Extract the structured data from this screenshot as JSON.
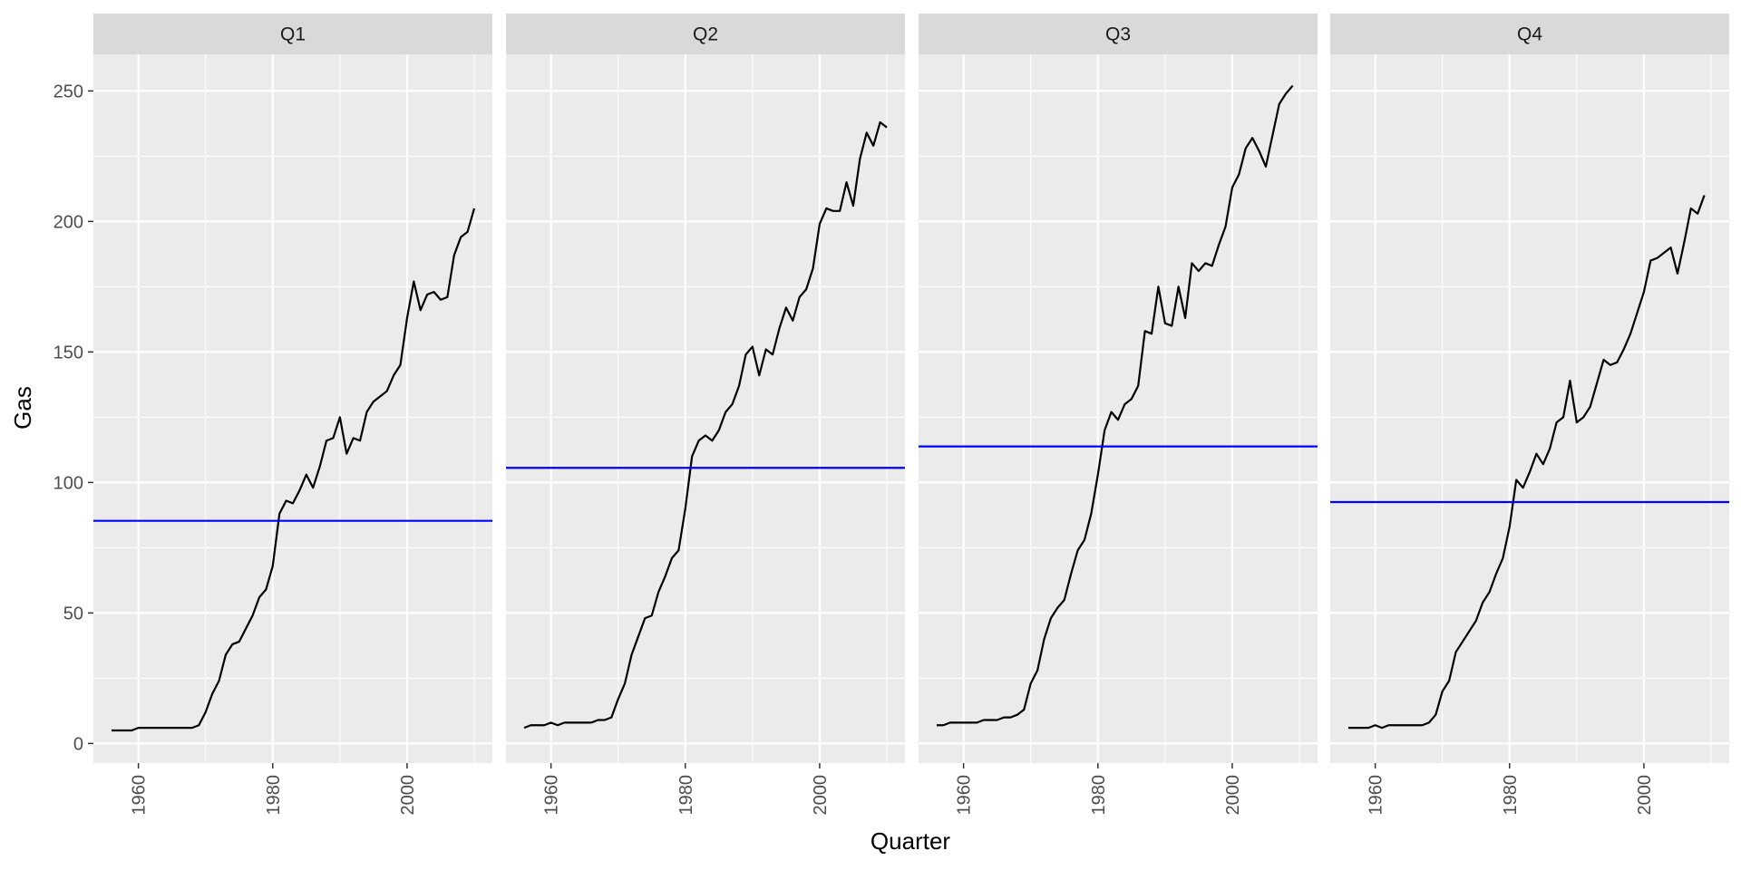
{
  "chart_data": {
    "type": "line",
    "title": "",
    "xlabel": "Quarter",
    "ylabel": "Gas",
    "xlim": [
      1953.3,
      2012.7
    ],
    "ylim": [
      -7.5,
      264
    ],
    "x_ticks": [
      1960,
      1980,
      2000
    ],
    "x_tick_labels": [
      "1960",
      "1980",
      "2000"
    ],
    "y_ticks": [
      0,
      50,
      100,
      150,
      200,
      250
    ],
    "y_tick_labels": [
      "0",
      "50",
      "100",
      "150",
      "200",
      "250"
    ],
    "grid": true,
    "line_color": "#000000",
    "mean_line_color": "#0000ff",
    "panel_background": "#ebebeb",
    "strip_background": "#d9d9d9",
    "x": [
      1956,
      1957,
      1958,
      1959,
      1960,
      1961,
      1962,
      1963,
      1964,
      1965,
      1966,
      1967,
      1968,
      1969,
      1970,
      1971,
      1972,
      1973,
      1974,
      1975,
      1976,
      1977,
      1978,
      1979,
      1980,
      1981,
      1982,
      1983,
      1984,
      1985,
      1986,
      1987,
      1988,
      1989,
      1990,
      1991,
      1992,
      1993,
      1994,
      1995,
      1996,
      1997,
      1998,
      1999,
      2000,
      2001,
      2002,
      2003,
      2004,
      2005,
      2006,
      2007,
      2008,
      2009,
      2010
    ],
    "facets": [
      {
        "label": "Q1",
        "mean": 85.3,
        "values": [
          5,
          5,
          5,
          5,
          6,
          6,
          6,
          6,
          6,
          6,
          6,
          6,
          6,
          7,
          12,
          19,
          24,
          34,
          38,
          39,
          44,
          49,
          56,
          59,
          68,
          88,
          93,
          92,
          97,
          103,
          98,
          106,
          116,
          117,
          125,
          111,
          117,
          116,
          127,
          131,
          133,
          135,
          141,
          145,
          163,
          177,
          166,
          172,
          173,
          170,
          171,
          187,
          194,
          196,
          205
        ]
      },
      {
        "label": "Q2",
        "mean": 105.6,
        "values": [
          6,
          7,
          7,
          7,
          8,
          7,
          8,
          8,
          8,
          8,
          8,
          9,
          9,
          10,
          17,
          23,
          34,
          41,
          48,
          49,
          58,
          64,
          71,
          74,
          90,
          110,
          116,
          118,
          116,
          120,
          127,
          130,
          137,
          149,
          152,
          141,
          151,
          149,
          159,
          167,
          162,
          171,
          174,
          182,
          199,
          205,
          204,
          204,
          215,
          206,
          224,
          234,
          229,
          238,
          236
        ]
      },
      {
        "label": "Q3",
        "mean": 113.8,
        "values": [
          7,
          7,
          8,
          8,
          8,
          8,
          8,
          9,
          9,
          9,
          10,
          10,
          11,
          13,
          23,
          28,
          40,
          48,
          52,
          55,
          65,
          74,
          78,
          88,
          103,
          120,
          127,
          124,
          130,
          132,
          137,
          158,
          157,
          175,
          161,
          160,
          175,
          163,
          184,
          181,
          184,
          183,
          191,
          198,
          213,
          218,
          228,
          232,
          227,
          221,
          233,
          245,
          249,
          252
        ]
      },
      {
        "label": "Q4",
        "mean": 92.5,
        "values": [
          6,
          6,
          6,
          6,
          7,
          6,
          7,
          7,
          7,
          7,
          7,
          7,
          8,
          11,
          20,
          24,
          35,
          39,
          43,
          47,
          54,
          58,
          65,
          71,
          83,
          101,
          98,
          104,
          111,
          107,
          113,
          123,
          125,
          139,
          123,
          125,
          129,
          138,
          147,
          145,
          146,
          151,
          157,
          165,
          173,
          185,
          186,
          188,
          190,
          180,
          192,
          205,
          203,
          210
        ]
      }
    ]
  }
}
